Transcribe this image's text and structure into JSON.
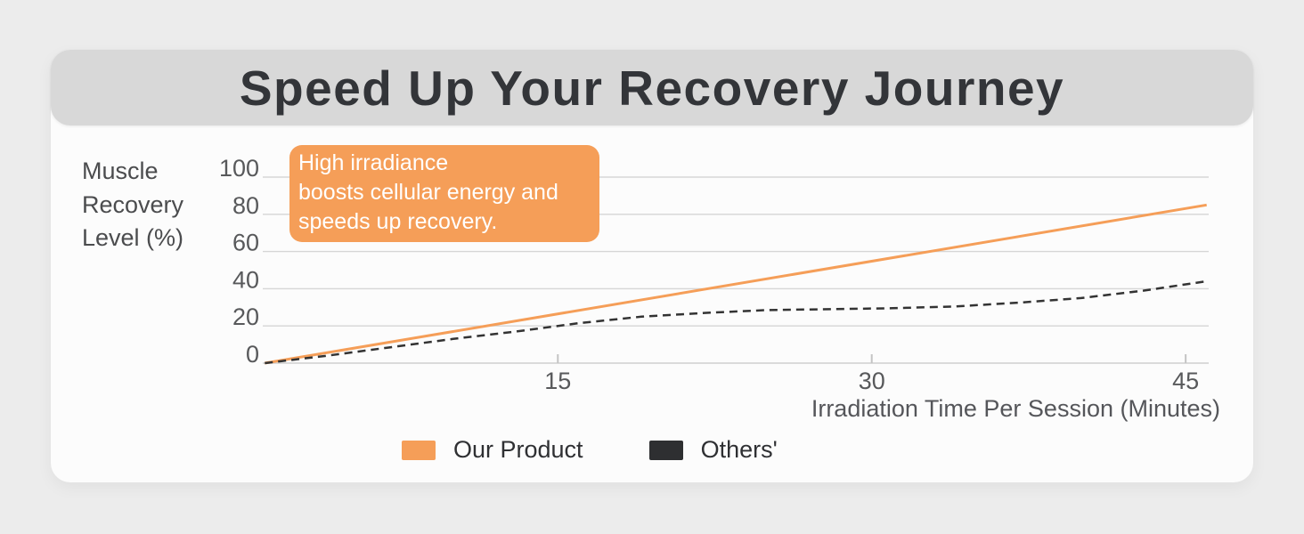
{
  "header": {
    "title": "Speed Up Your Recovery Journey"
  },
  "annotation": {
    "text": "High irradiance\nboosts cellular energy and\nspeeds up recovery.",
    "bg_color": "#F59E58",
    "text_color": "#FFFFFF"
  },
  "axes": {
    "y_title": "Muscle\nRecovery\nLevel (%)",
    "x_title": "Irradiation Time Per Session (Minutes)"
  },
  "legend": {
    "items": [
      {
        "label": "Our Product",
        "color": "#F59E58"
      },
      {
        "label": "Others'",
        "color": "#2E2F31"
      }
    ]
  },
  "colors": {
    "accent_orange": "#F59E58",
    "dark_line": "#333333",
    "gridline": "#D6D6D6",
    "tick_text": "#58595B",
    "banner_bg": "#D8D8D8",
    "card_bg": "#FCFCFC",
    "page_bg": "#ECECEC"
  },
  "chart_data": {
    "type": "line",
    "title": "Speed Up Your Recovery Journey",
    "xlabel": "Irradiation Time Per Session (Minutes)",
    "ylabel": "Muscle Recovery Level (%)",
    "xlim": [
      0.9,
      46.1
    ],
    "ylim": [
      0,
      100
    ],
    "x_ticks": [
      15,
      30,
      45
    ],
    "y_ticks": [
      0,
      20,
      40,
      60,
      80,
      100
    ],
    "grid": true,
    "legend_position": "bottom",
    "annotation": "High irradiance boosts cellular energy and speeds up recovery.",
    "series": [
      {
        "name": "Our Product",
        "color": "#F59E58",
        "line_style": "solid",
        "line_width": 3,
        "points": [
          [
            1,
            0
          ],
          [
            46,
            85
          ]
        ]
      },
      {
        "name": "Others'",
        "color": "#333333",
        "line_style": "dashed",
        "line_width": 2.5,
        "points": [
          [
            1,
            0
          ],
          [
            4,
            4
          ],
          [
            7,
            8.5
          ],
          [
            10,
            13
          ],
          [
            13,
            17
          ],
          [
            16,
            21.5
          ],
          [
            19,
            25
          ],
          [
            22,
            27
          ],
          [
            25,
            28.5
          ],
          [
            28,
            29
          ],
          [
            31,
            29.5
          ],
          [
            34,
            30.5
          ],
          [
            37,
            32.5
          ],
          [
            40,
            35
          ],
          [
            43,
            39
          ],
          [
            46,
            44
          ]
        ]
      }
    ]
  }
}
